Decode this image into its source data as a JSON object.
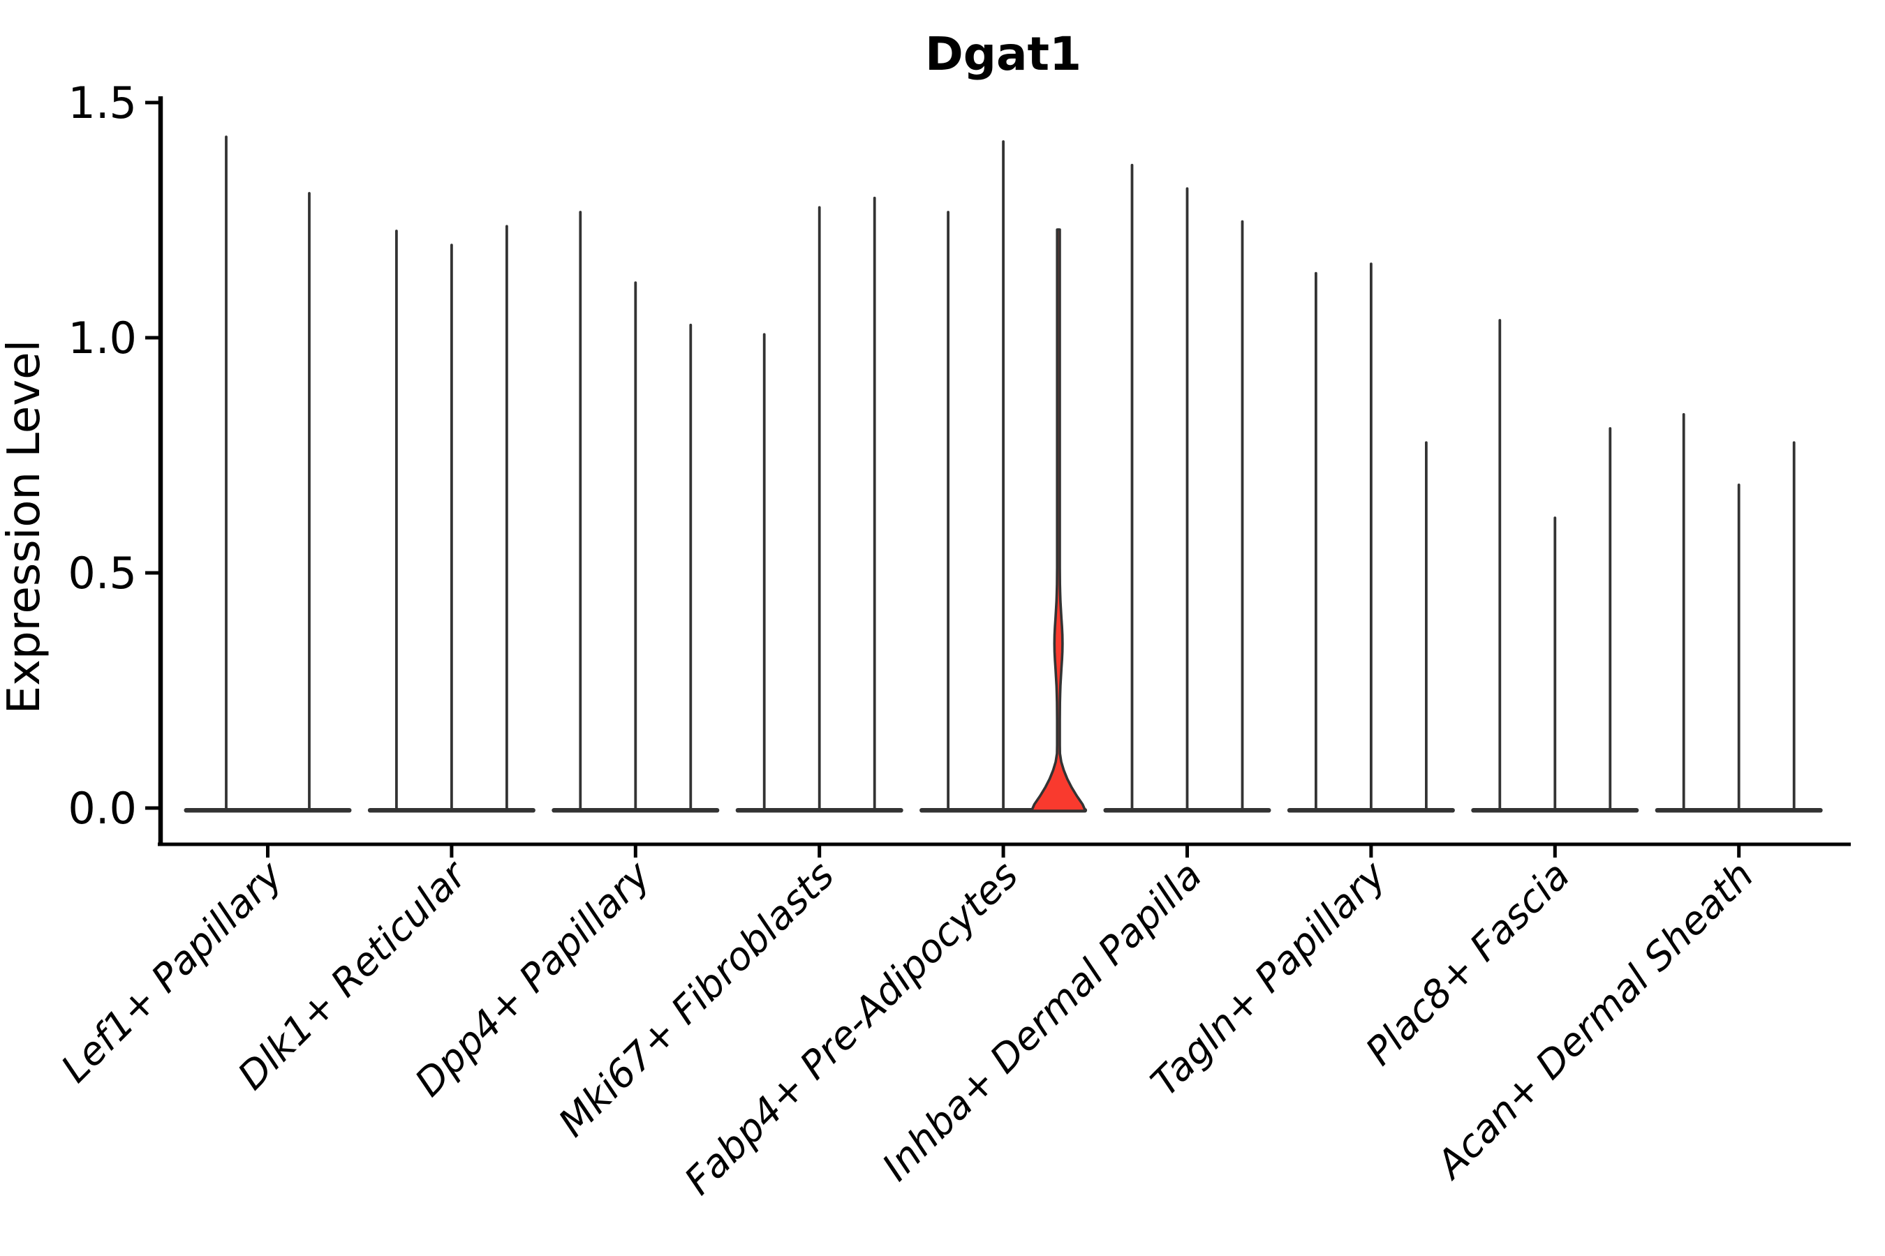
{
  "chart_data": {
    "type": "violin",
    "title": "Dgat1",
    "xlabel": "",
    "ylabel": "Expression Level",
    "ylim": [
      0,
      1.5
    ],
    "yticks": [
      {
        "label": "1.5",
        "value": 1.5
      },
      {
        "label": "1.0",
        "value": 1.0
      },
      {
        "label": "0.5",
        "value": 0.5
      },
      {
        "label": "0.0",
        "value": 0.0
      }
    ],
    "grid": false,
    "legend": "none",
    "categories": [
      "Lef1+ Papillary",
      "Dlk1+ Reticular",
      "Dpp4+ Papillary",
      "Mki67+ Fibroblasts",
      "Fabp4+ Pre-Adipocytes",
      "Inhba+ Dermal Papilla",
      "Tagln+ Papillary",
      "Plac8+ Fascia",
      "Acan+ Dermal Sheath"
    ],
    "groups": [
      {
        "category": "Lef1+ Papillary",
        "violins": [
          {
            "max": 1.43
          },
          {
            "max": 1.31
          }
        ]
      },
      {
        "category": "Dlk1+ Reticular",
        "violins": [
          {
            "max": 1.23
          },
          {
            "max": 1.2
          },
          {
            "max": 1.24
          }
        ]
      },
      {
        "category": "Dpp4+ Papillary",
        "violins": [
          {
            "max": 1.27
          },
          {
            "max": 1.12
          },
          {
            "max": 1.03
          }
        ]
      },
      {
        "category": "Mki67+ Fibroblasts",
        "violins": [
          {
            "max": 1.01
          },
          {
            "max": 1.28
          },
          {
            "max": 1.3
          }
        ]
      },
      {
        "category": "Fabp4+ Pre-Adipocytes",
        "violins": [
          {
            "max": 1.27
          },
          {
            "max": 1.42
          },
          {
            "max": 1.23,
            "highlighted": true,
            "bulge": {
              "start": 0.16,
              "peak": 0.35,
              "end": 0.5
            },
            "base_top": 0.12
          }
        ]
      },
      {
        "category": "Inhba+ Dermal Papilla",
        "violins": [
          {
            "max": 1.37
          },
          {
            "max": 1.32
          },
          {
            "max": 1.25
          }
        ]
      },
      {
        "category": "Tagln+ Papillary",
        "violins": [
          {
            "max": 1.14
          },
          {
            "max": 1.16
          },
          {
            "max": 0.78
          }
        ]
      },
      {
        "category": "Plac8+ Fascia",
        "violins": [
          {
            "max": 1.04
          },
          {
            "max": 0.62
          },
          {
            "max": 0.81
          }
        ]
      },
      {
        "category": "Acan+ Dermal Sheath",
        "violins": [
          {
            "max": 0.84
          },
          {
            "max": 0.69
          },
          {
            "max": 0.78
          }
        ]
      }
    ],
    "colors": {
      "background": "#ffffff",
      "violin_stroke": "#333333",
      "highlight_fill": "#F93A2E",
      "axis": "#000000",
      "text": "#000000"
    }
  }
}
